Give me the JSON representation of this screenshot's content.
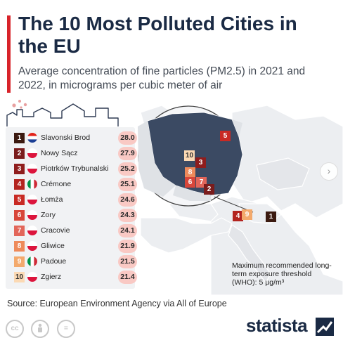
{
  "header": {
    "title": "The 10 Most Polluted Cities in the EU",
    "subtitle": "Average concentration of fine particles (PM2.5) in 2021 and 2022, in micrograms per cubic meter of air"
  },
  "chart_data": {
    "type": "table",
    "categories": [
      "Slavonski Brod",
      "Nowy Sącz",
      "Piotrków Trybunalski",
      "Crémone",
      "Łomża",
      "Zory",
      "Cracovie",
      "Gliwice",
      "Padoue",
      "Zgierz"
    ],
    "ranks": [
      "1",
      "2",
      "3",
      "4",
      "5",
      "6",
      "7",
      "8",
      "9",
      "10"
    ],
    "values": [
      28.0,
      27.9,
      25.2,
      25.1,
      24.6,
      24.3,
      24.1,
      21.9,
      21.5,
      21.4
    ],
    "value_labels": [
      "28.0",
      "27.9",
      "25.2",
      "25.1",
      "24.6",
      "24.3",
      "24.1",
      "21.9",
      "21.5",
      "21.4"
    ],
    "flags": [
      "croatia",
      "poland",
      "poland",
      "italy",
      "poland",
      "poland",
      "poland",
      "poland",
      "italy",
      "poland"
    ],
    "rank_colors": [
      "#3b1a10",
      "#7a1c1c",
      "#8f1d1d",
      "#b3241f",
      "#c82a24",
      "#d8463a",
      "#e2665a",
      "#ee8a5a",
      "#f3a96c",
      "#fbd9b4"
    ],
    "threshold_note": "Maximum recommended long-term exposure threshold (WHO): 5 µg/m³"
  },
  "source": "Source: European Environment Agency via All of Europe",
  "license_icons": [
    "cc",
    "by",
    "nd"
  ],
  "brand": "statista",
  "icons": {
    "next": "chevron-right-icon"
  }
}
